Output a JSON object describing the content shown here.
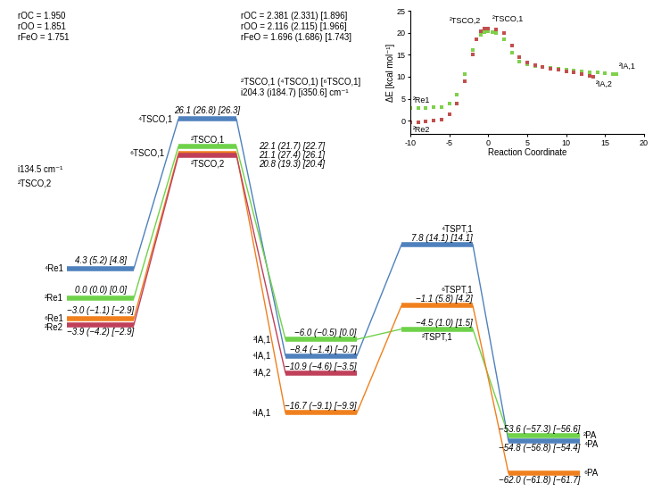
{
  "diagram": {
    "annotations": {
      "left_structure": {
        "label": "²TSCO,2",
        "frequency": "i134.5 cm⁻¹",
        "distances": [
          "rOC = 1.950",
          "rOO = 1.851",
          "rFeO = 1.751"
        ]
      },
      "right_structure": {
        "label": "²TSCO,1 (⁴TSCO,1) [⁶TSCO,1]",
        "frequency": "i204.3 (i184.7) [i350.6] cm⁻¹",
        "distances": [
          "rOC = 2.381 (2.331) [1.896]",
          "rOO = 2.116 (2.115) [1.966]",
          "rFeO = 1.696 (1.686) [1.743]"
        ]
      }
    },
    "stages": [
      [
        {
          "label": "⁴Re1",
          "energy": 4.3,
          "energy_label": "4.3 (5.2) [4.8]",
          "color": "#4f81bd"
        },
        {
          "label": "²Re1",
          "energy": 0.0,
          "energy_label": "0.0 (0.0) [0.0]",
          "color": "#6fd24a"
        },
        {
          "label": "⁶Re1",
          "energy": -3.0,
          "energy_label": "−3.0 (−1.1) [−2.9]",
          "color": "#f0801e"
        },
        {
          "label": "²Re2",
          "energy": -3.9,
          "energy_label": "−3.9 (−4.2) [−2.9]",
          "color": "#c0405a"
        }
      ],
      [
        {
          "label": "⁴TSCO,1",
          "energy": 26.1,
          "energy_label": "26.1 (26.8) [26.3]",
          "color": "#4f81bd"
        },
        {
          "label": "²TSCO,1",
          "energy": 22.1,
          "energy_label": "22.1 (21.7) [22.7]",
          "color": "#6fd24a"
        },
        {
          "label": "⁶TSCO,1",
          "energy": 21.1,
          "energy_label": "21.1 (27.4) [26.1]",
          "color": "#f0801e"
        },
        {
          "label": "²TSCO,2",
          "energy": 20.8,
          "energy_label": "20.8 (19.3) [20.4]",
          "color": "#c0405a"
        }
      ],
      [
        {
          "label": "²IA,1",
          "energy": -6.0,
          "energy_label": "−6.0 (−0.5) [0.0]",
          "color": "#6fd24a"
        },
        {
          "label": "⁴IA,1",
          "energy": -8.4,
          "energy_label": "−8.4 (−1.4) [−0.7]",
          "color": "#4f81bd"
        },
        {
          "label": "²IA,2",
          "energy": -10.9,
          "energy_label": "−10.9 (−4.6) [−3.5]",
          "color": "#c0405a"
        },
        {
          "label": "⁶IA,1",
          "energy": -16.7,
          "energy_label": "−16.7 (−9.1) [−9.9]",
          "color": "#f0801e"
        }
      ],
      [
        {
          "label": "⁴TSPT,1",
          "energy": 7.8,
          "energy_label": "7.8 (14.1) [14.1]",
          "color": "#4f81bd"
        },
        {
          "label": "⁶TSPT,1",
          "energy": -1.1,
          "energy_label": "−1.1 (5.8) [4.2]",
          "color": "#f0801e"
        },
        {
          "label": "²TSPT,1",
          "energy": -4.5,
          "energy_label": "−4.5 (1.0) [1.5]",
          "color": "#6fd24a"
        }
      ],
      [
        {
          "label": "⁴PA",
          "energy": -54.8,
          "energy_label": "−54.8 (−56.8) [−54.4]",
          "color": "#4f81bd"
        },
        {
          "label": "²PA",
          "energy": -53.6,
          "energy_label": "−53.6 (−57.3) [−56.6]",
          "color": "#6fd24a"
        },
        {
          "label": "⁶PA",
          "energy": -62.0,
          "energy_label": "−62.0 (−61.8) [−61.7]",
          "color": "#f0801e"
        }
      ]
    ]
  },
  "chart_data": {
    "type": "scatter",
    "xlabel": "Reaction Coordinate",
    "ylabel": "ΔE [kcal mol⁻¹]",
    "xlim": [
      -10,
      20
    ],
    "xticks": [
      -10,
      -5,
      0,
      5,
      10,
      15,
      20
    ],
    "ylim": [
      -3,
      25
    ],
    "yticks": [
      0,
      5,
      10,
      15,
      20,
      25
    ],
    "series": [
      {
        "color": "#7fd04b",
        "marker": "square",
        "start_label": "²Re1",
        "peak_label": "²TSCO,1",
        "end_label": "²IA,1",
        "x": [
          -10,
          -9,
          -8,
          -7,
          -6,
          -5,
          -4,
          -3,
          -2,
          -1,
          -0.5,
          0,
          0.5,
          1,
          2,
          3,
          4,
          5,
          6,
          7,
          8,
          9,
          10,
          11,
          12,
          13,
          14,
          15,
          16,
          16.5
        ],
        "values": [
          2.8,
          2.8,
          2.9,
          3,
          3.1,
          3.8,
          6,
          10.5,
          16,
          19.5,
          20.1,
          20.3,
          20.2,
          20,
          18.5,
          15.5,
          13.5,
          12.8,
          12.4,
          12.2,
          12,
          11.9,
          11.7,
          11.5,
          11.3,
          11.1,
          10.9,
          10.7,
          10.6,
          10.5
        ]
      },
      {
        "color": "#c0504d",
        "marker": "square",
        "start_label": "²Re2",
        "peak_label": "²TSCO,2",
        "end_label": "²IA,2",
        "x": [
          -10,
          -9,
          -8,
          -7,
          -6,
          -5,
          -4,
          -3,
          -2,
          -1.5,
          -1,
          -0.5,
          0,
          1,
          2,
          3,
          4,
          5,
          6,
          7,
          8,
          9,
          10,
          11,
          12,
          13,
          13.5
        ],
        "values": [
          -0.4,
          -0.3,
          -0.2,
          0,
          0.3,
          1.5,
          4,
          9,
          15,
          18.5,
          20.3,
          21,
          21,
          20.8,
          20,
          17,
          14.5,
          13.2,
          12.6,
          12.2,
          11.9,
          11.6,
          11.3,
          11,
          10.6,
          10.2,
          10
        ]
      }
    ]
  }
}
